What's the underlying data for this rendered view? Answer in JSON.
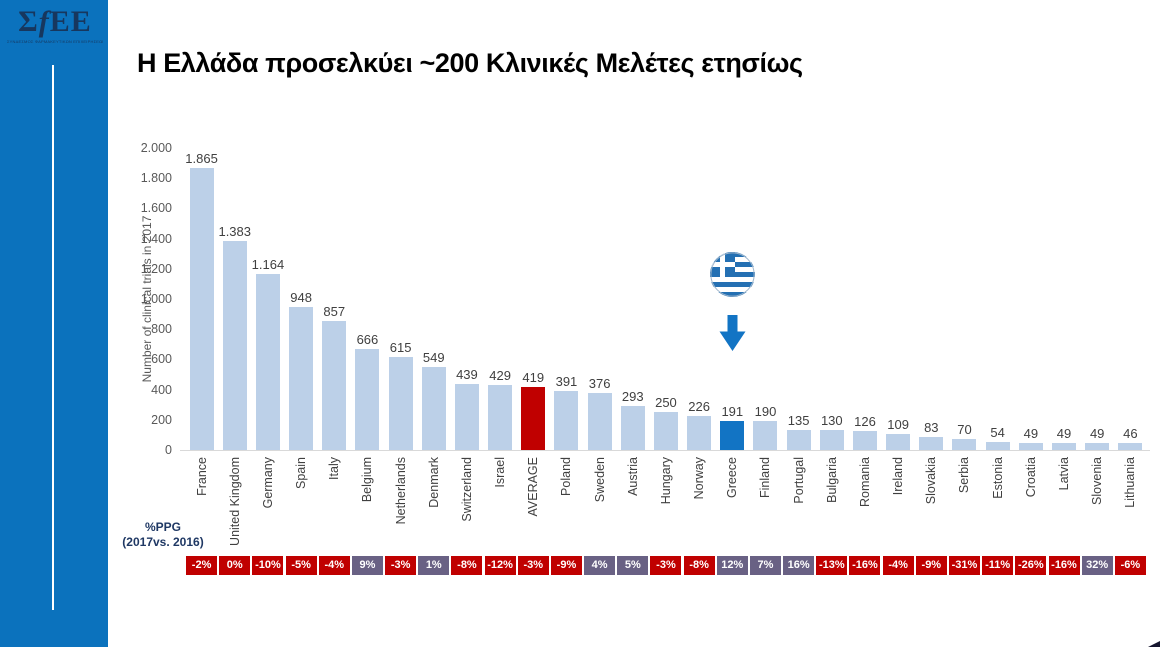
{
  "sidebar": {
    "logo": {
      "sigma": "Σ",
      "f": "f",
      "ee": "EE"
    },
    "logo_subtext": "ΣΥΝΔΕΣΜΟΣ ΦΑΡΜΑΚΕΥΤΙΚΩΝ ΕΠΙΧΕΙΡΗΣΕΩΝ ΕΛΛΑΔΟΣ"
  },
  "header": {
    "title": "Η Ελλάδα προσελκύει ~200 Κλινικές Μελέτες ετησίως"
  },
  "colors": {
    "sidebar_blue": "#0b72bd",
    "bar": "#bcd0e8",
    "average_bar": "#c00000",
    "greece_bar": "#1274c4",
    "ppg_negative": "#c00000",
    "ppg_positive": "#696184",
    "axis_text": "#595959",
    "label_text": "#404040",
    "navy_text": "#1f3864",
    "arrow_blue": "#1274c4"
  },
  "chart_data": {
    "type": "bar",
    "title": "",
    "xlabel": "",
    "ylabel": "Number of clinical trials in 2017",
    "ylim": [
      0,
      2000
    ],
    "ytick_step": 200,
    "ytick_labels": [
      "2.000",
      "1.800",
      "1.600",
      "1.400",
      "1.200",
      "1.000",
      "800",
      "600",
      "400",
      "200",
      "0"
    ],
    "grid": false,
    "legend": "none",
    "categories": [
      "France",
      "United Kingdom",
      "Germany",
      "Spain",
      "Italy",
      "Belgium",
      "Netherlands",
      "Denmark",
      "Switzerland",
      "Israel",
      "AVERAGE",
      "Poland",
      "Sweden",
      "Austria",
      "Hungary",
      "Norway",
      "Greece",
      "Finland",
      "Portugal",
      "Bulgaria",
      "Romania",
      "Ireland",
      "Slovakia",
      "Serbia",
      "Estonia",
      "Croatia",
      "Latvia",
      "Slovenia",
      "Lithuania"
    ],
    "values": [
      1865,
      1383,
      1164,
      948,
      857,
      666,
      615,
      549,
      439,
      429,
      419,
      391,
      376,
      293,
      250,
      226,
      191,
      190,
      135,
      130,
      126,
      109,
      83,
      70,
      54,
      49,
      49,
      49,
      46
    ],
    "value_labels": [
      "1.865",
      "1.383",
      "1.164",
      "948",
      "857",
      "666",
      "615",
      "549",
      "439",
      "429",
      "419",
      "391",
      "376",
      "293",
      "250",
      "226",
      "191",
      "190",
      "135",
      "130",
      "126",
      "109",
      "83",
      "70",
      "54",
      "49",
      "49",
      "49",
      "46"
    ],
    "highlighted_bars": {
      "average": "AVERAGE",
      "greece": "Greece"
    },
    "ppg_row": {
      "label_line1": "%PPG",
      "label_line2": "(2017vs. 2016)",
      "values": [
        "-2%",
        "0%",
        "-10%",
        "-5%",
        "-4%",
        "9%",
        "-3%",
        "1%",
        "-8%",
        "-12%",
        "-3%",
        "-9%",
        "4%",
        "5%",
        "-3%",
        "-8%",
        "12%",
        "7%",
        "16%",
        "-13%",
        "-16%",
        "-4%",
        "-9%",
        "-31%",
        "-11%",
        "-26%",
        "-16%",
        "32%",
        "-6%"
      ]
    },
    "annotation": {
      "flag": "greek-flag-above-greece-bar",
      "arrow": "blue-down-arrow-pointing-at-greece-bar"
    }
  }
}
